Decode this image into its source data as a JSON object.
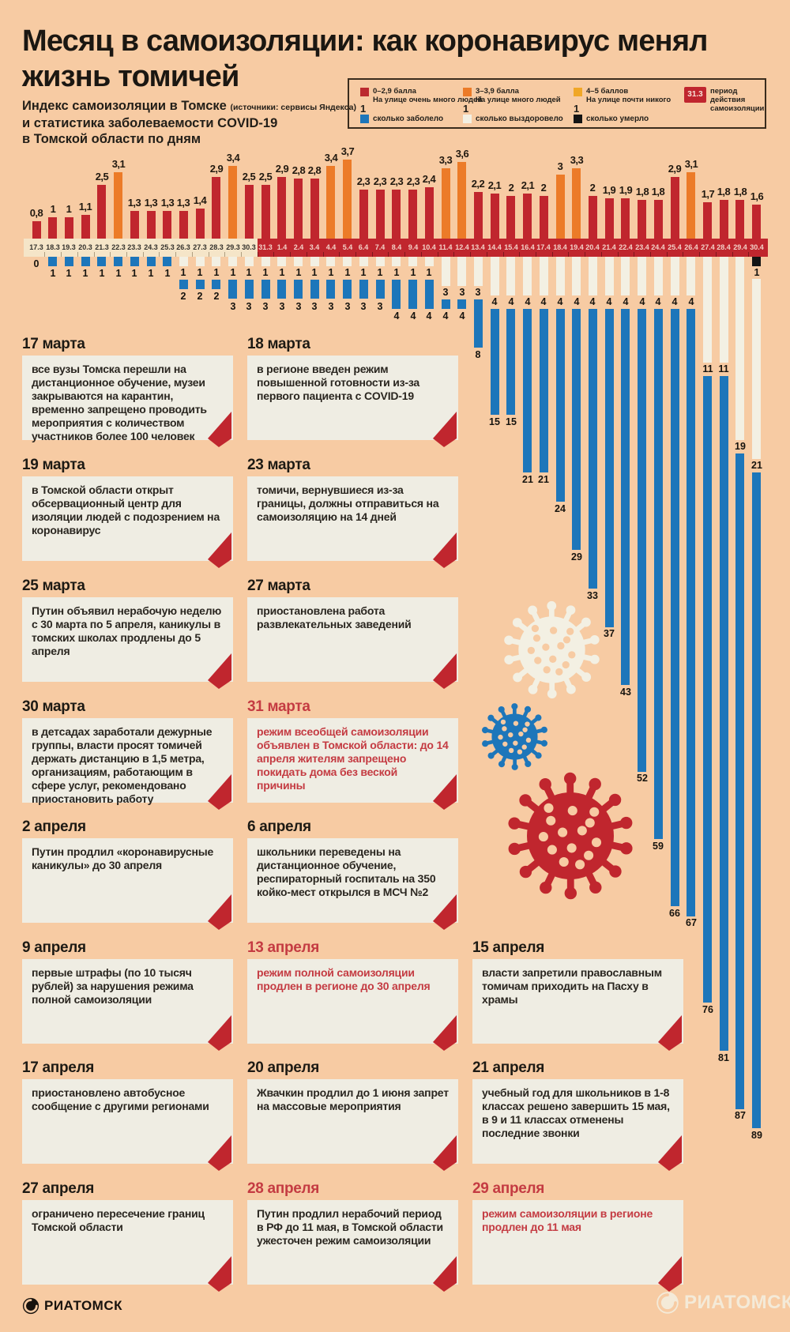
{
  "header": {
    "title_line1": "Месяц в самоизоляции: как коронавирус менял",
    "title_line2": "жизнь томичей",
    "subtitle_line1_main": "Индекс самоизоляции в Томске",
    "subtitle_line1_note": "(источники: сервисы Яндекса)",
    "subtitle_line2": "и статистика заболеваемости COVID-19",
    "subtitle_line3": "в Томской области по дням"
  },
  "legend": {
    "index_items": [
      {
        "color": "#bb2a2f",
        "range": "0–2,9 балла",
        "desc": "На улице очень много людей"
      },
      {
        "color": "#ec7b28",
        "range": "3–3,9 балла",
        "desc": "На улице много людей"
      },
      {
        "color": "#f0a727",
        "range": "4–5 баллов",
        "desc": "На улице почти никого"
      }
    ],
    "period_badge": {
      "label": "31.3",
      "desc_line1": "период действия",
      "desc_line2": "самоизоляции",
      "color": "#c0262e"
    },
    "count_items": [
      {
        "color": "#1d76ba",
        "value": "1",
        "label": "сколько заболело"
      },
      {
        "color": "#f3f0e3",
        "value": "1",
        "label": "сколько выздоровело"
      },
      {
        "color": "#141414",
        "value": "1",
        "label": "сколько умерло"
      }
    ]
  },
  "chart_data": {
    "type": "bar",
    "title": "Индекс самоизоляции в Томске и статистика заболеваемости COVID-19 в Томской области по дням",
    "categories": [
      "17.3",
      "18.3",
      "19.3",
      "20.3",
      "21.3",
      "22.3",
      "23.3",
      "24.3",
      "25.3",
      "26.3",
      "27.3",
      "28.3",
      "29.3",
      "30.3",
      "31.3",
      "1.4",
      "2.4",
      "3.4",
      "4.4",
      "5.4",
      "6.4",
      "7.4",
      "8.4",
      "9.4",
      "10.4",
      "11.4",
      "12.4",
      "13.4",
      "14.4",
      "15.4",
      "16.4",
      "17.4",
      "18.4",
      "19.4",
      "20.4",
      "21.4",
      "22.4",
      "23.4",
      "24.4",
      "25.4",
      "26.4",
      "27.4",
      "28.4",
      "29.4",
      "30.4"
    ],
    "series": [
      {
        "name": "индекс самоизоляции (баллы)",
        "values": [
          0.8,
          1,
          1,
          1.1,
          2.5,
          3.1,
          1.3,
          1.3,
          1.3,
          1.3,
          1.4,
          2.9,
          3.4,
          2.5,
          2.5,
          2.9,
          2.8,
          2.8,
          3.4,
          3.7,
          2.3,
          2.3,
          2.3,
          2.3,
          2.4,
          3.3,
          3.6,
          2.2,
          2.1,
          2,
          2.1,
          2,
          3,
          3.3,
          2,
          1.9,
          1.9,
          1.8,
          1.8,
          2.9,
          3.1,
          1.7,
          1.8,
          1.8,
          1.6
        ]
      },
      {
        "name": "сколько заболело",
        "values": [
          0,
          1,
          1,
          1,
          1,
          1,
          1,
          1,
          1,
          2,
          2,
          2,
          3,
          3,
          3,
          3,
          3,
          3,
          3,
          3,
          3,
          3,
          4,
          4,
          4,
          4,
          4,
          8,
          15,
          15,
          21,
          21,
          24,
          29,
          33,
          37,
          43,
          52,
          59,
          66,
          67,
          76,
          81,
          87,
          89
        ]
      },
      {
        "name": "сколько выздоровело",
        "values": [
          0,
          0,
          0,
          0,
          0,
          0,
          0,
          0,
          0,
          1,
          1,
          1,
          1,
          1,
          1,
          1,
          1,
          1,
          1,
          1,
          1,
          1,
          1,
          1,
          1,
          3,
          3,
          3,
          4,
          4,
          4,
          4,
          4,
          4,
          4,
          4,
          4,
          4,
          4,
          4,
          4,
          11,
          11,
          19,
          21
        ]
      },
      {
        "name": "сколько умерло",
        "values": [
          0,
          0,
          0,
          0,
          0,
          0,
          0,
          0,
          0,
          0,
          0,
          0,
          0,
          0,
          0,
          0,
          0,
          0,
          0,
          0,
          0,
          0,
          0,
          0,
          0,
          0,
          0,
          0,
          0,
          0,
          0,
          0,
          0,
          0,
          0,
          0,
          0,
          0,
          0,
          0,
          0,
          0,
          0,
          0,
          1
        ]
      }
    ],
    "isolation_period_start": "31.3",
    "index_color_low": "#c0262e",
    "index_color_mid": "#ec7b28",
    "infected_color": "#1d76ba",
    "recovered_color": "#f3f0e3",
    "died_color": "#141414",
    "axis_band_normal": "#f5e5c8",
    "axis_band_isolation": "#c0262e",
    "legend_position": "top-right",
    "grid": false
  },
  "events": [
    {
      "date": "17 марта",
      "text": "все вузы Томска перешли на дистанционное обучение, музеи закрываются на карантин, временно запрещено проводить мероприятия с количеством участников более 100 человек",
      "highlight": false
    },
    {
      "date": "18 марта",
      "text": "в регионе введен режим повышенной готовности из-за первого пациента с COVID-19",
      "highlight": false
    },
    {
      "date": "19 марта",
      "text": "в Томской области открыт обсервационный центр для изоляции людей с подозрением на коронавирус",
      "highlight": false
    },
    {
      "date": "23 марта",
      "text": "томичи, вернувшиеся из-за границы, должны отправиться на самоизоляцию на 14 дней",
      "highlight": false
    },
    {
      "date": "25 марта",
      "text": "Путин объявил нерабочую неделю с 30 марта по 5 апреля, каникулы в томских школах продлены до 5 апреля",
      "highlight": false
    },
    {
      "date": "27 марта",
      "text": "приостановлена работа развлекательных заведений",
      "highlight": false
    },
    {
      "date": "30 марта",
      "text": "в детсадах заработали дежурные группы, власти просят томичей держать дистанцию в 1,5 метра, организациям, работающим в сфере услуг, рекомендовано приостановить работу",
      "highlight": false
    },
    {
      "date": "31 марта",
      "text": "режим всеобщей самоизоляции объявлен в Томской области: до 14 апреля жителям запрещено покидать дома без веской причины",
      "highlight": true
    },
    {
      "date": "2 апреля",
      "text": "Путин продлил «коронавирусные каникулы» до 30 апреля",
      "highlight": false
    },
    {
      "date": "6 апреля",
      "text": "школьники переведены на дистанционное обучение, респираторный госпиталь на 350 койко-мест открылся в МСЧ №2",
      "highlight": false
    },
    {
      "date": "9 апреля",
      "text": "первые штрафы (по 10 тысяч рублей) за нарушения режима полной самоизоляции",
      "highlight": false
    },
    {
      "date": "13 апреля",
      "text": "режим полной самоизоляции продлен в регионе до 30 апреля",
      "highlight": true
    },
    {
      "date": "15 апреля",
      "text": "власти запретили православным томичам приходить на Пасху в храмы",
      "highlight": false
    },
    {
      "date": "17 апреля",
      "text": "приостановлено автобусное сообщение с другими регионами",
      "highlight": false
    },
    {
      "date": "20 апреля",
      "text": "Жвачкин продлил до 1 июня запрет на массовые мероприятия",
      "highlight": false
    },
    {
      "date": "21 апреля",
      "text": "учебный год для школьников в 1-8 классах решено завершить 15 мая, в 9 и 11 классах отменены последние звонки",
      "highlight": false
    },
    {
      "date": "27 апреля",
      "text": "ограничено пересечение границ Томской области",
      "highlight": false
    },
    {
      "date": "28 апреля",
      "text": "Путин продлил нерабочий период в РФ до 11 мая, в Томской области ужесточен режим самоизоляции",
      "highlight": true,
      "highlight_title_only": true
    },
    {
      "date": "29 апреля",
      "text": "режим самоизоляции в регионе продлен до 11 мая",
      "highlight": true
    }
  ],
  "illustrations": {
    "viruses": [
      {
        "name": "virus-icon-cream",
        "color": "#f3f0e3"
      },
      {
        "name": "virus-icon-blue",
        "color": "#1d76ba"
      },
      {
        "name": "virus-icon-red",
        "color": "#c0262e"
      }
    ],
    "fold_color": "#c0262e"
  },
  "footer": {
    "brand": "РИАТОМСК"
  }
}
